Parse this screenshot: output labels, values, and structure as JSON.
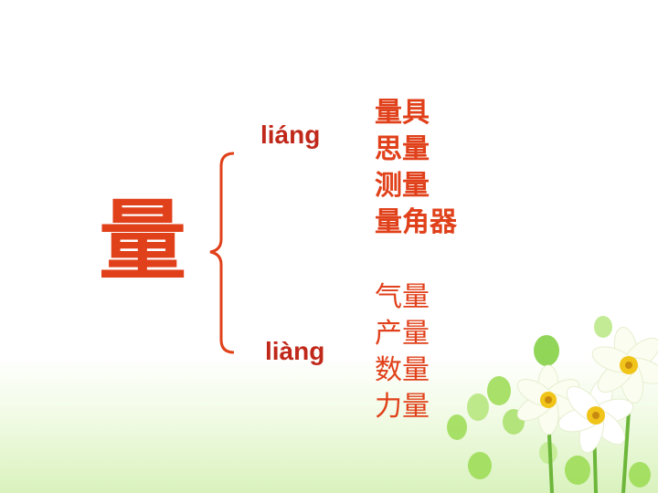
{
  "diagram": {
    "main_character": "量",
    "readings": [
      {
        "pinyin": "liáng",
        "words": [
          "量具",
          "思量",
          "测量",
          "量角器"
        ]
      },
      {
        "pinyin": "liàng",
        "words": [
          "气量",
          "产量",
          "数量",
          "力量"
        ]
      }
    ]
  },
  "colors": {
    "text_red": "#e0401a",
    "pinyin_red": "#c0281a",
    "bracket_red": "#e0401a",
    "leaf_green": "#8fd64a",
    "petal_white": "#fbfdf0",
    "flower_center": "#f0c419"
  }
}
